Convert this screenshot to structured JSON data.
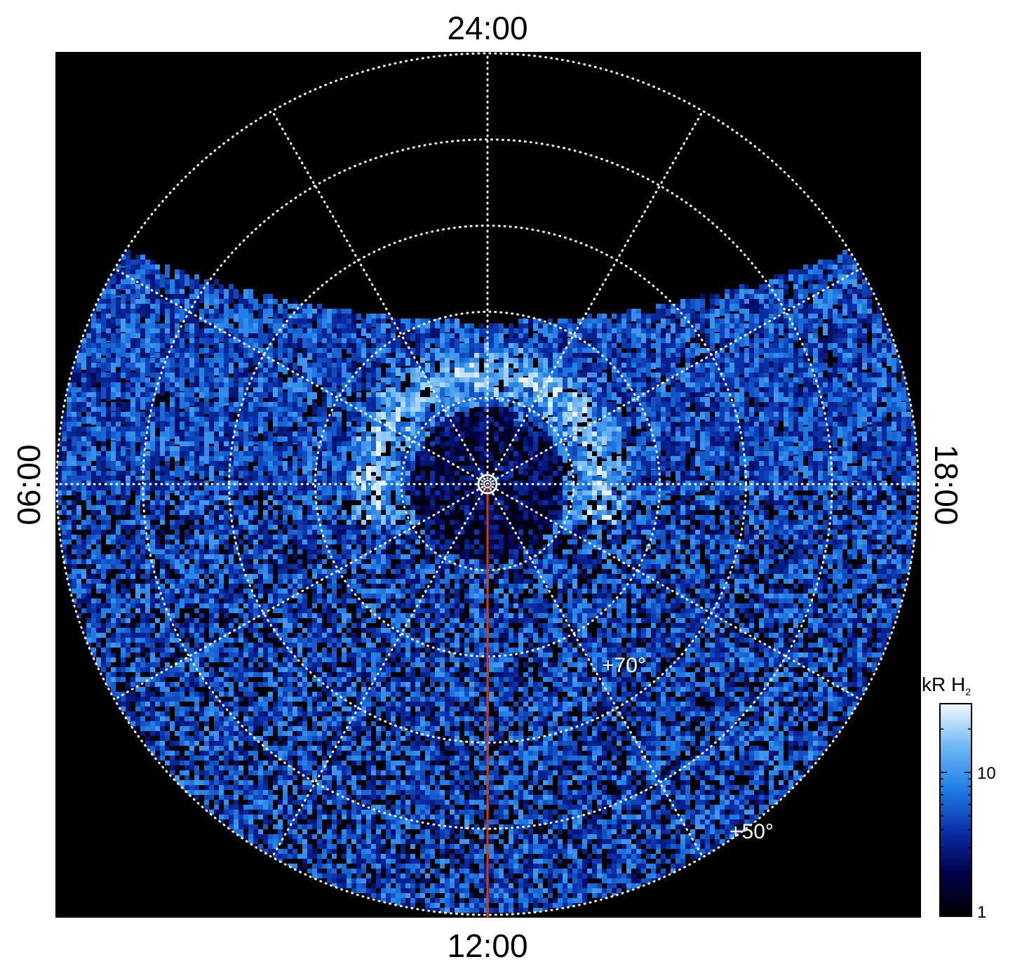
{
  "chart_data": {
    "type": "heatmap",
    "projection": "polar",
    "title": "",
    "local_time_labels": {
      "top": "24:00",
      "bottom": "12:00",
      "left": "06:00",
      "right": "18:00"
    },
    "latitude_labels": [
      "+70°",
      "+50°"
    ],
    "latitude_grid_deg": [
      90,
      80,
      70,
      60,
      50,
      40
    ],
    "meridian_spacing_hours": 2,
    "grid": true,
    "colorbar": {
      "title": "kR H",
      "title_subscript": "2",
      "scale": "log",
      "range": [
        1,
        30
      ],
      "ticks": [
        {
          "value": 1,
          "label": "1"
        },
        {
          "value": 10,
          "label": "10"
        }
      ],
      "colormap": [
        "#000000",
        "#00004a",
        "#0a2fa8",
        "#1f7ee6",
        "#6fb8f5",
        "#e8f4ff"
      ]
    },
    "features": [
      {
        "name": "main auroral oval",
        "local_time_range": [
          "05:00",
          "19:00"
        ],
        "latitude_range_deg": [
          70,
          80
        ],
        "peak_kR": 25
      },
      {
        "name": "no-data region",
        "local_time_range": [
          "20:00",
          "04:00"
        ]
      },
      {
        "name": "sub-solar meridian marker",
        "color": "#d43a0f",
        "local_time": "12:00"
      }
    ]
  },
  "colors": {
    "background": "#000000",
    "grid": "#ffffff",
    "meridian_line": "#d43a0f"
  }
}
